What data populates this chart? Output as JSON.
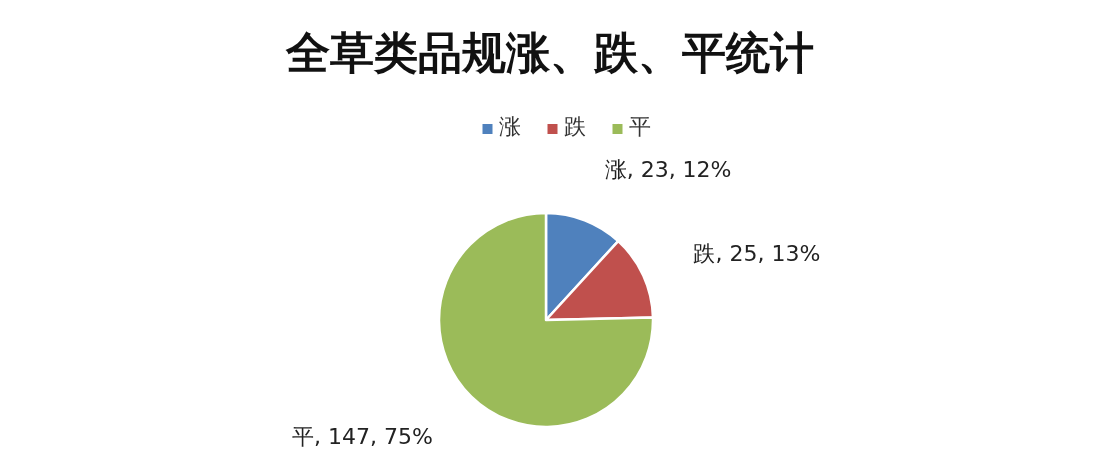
{
  "chart_data": {
    "type": "pie",
    "title": "全草类品规涨、跌、平统计",
    "categories": [
      "涨",
      "跌",
      "平"
    ],
    "values": [
      23,
      25,
      147
    ],
    "colors": [
      "#4f81bd",
      "#c0504d",
      "#9bbb59"
    ],
    "value_labels": [
      "涨, 23, 12%",
      "跌, 25, 13%",
      "平, 147, 75%"
    ],
    "legend": "top"
  }
}
